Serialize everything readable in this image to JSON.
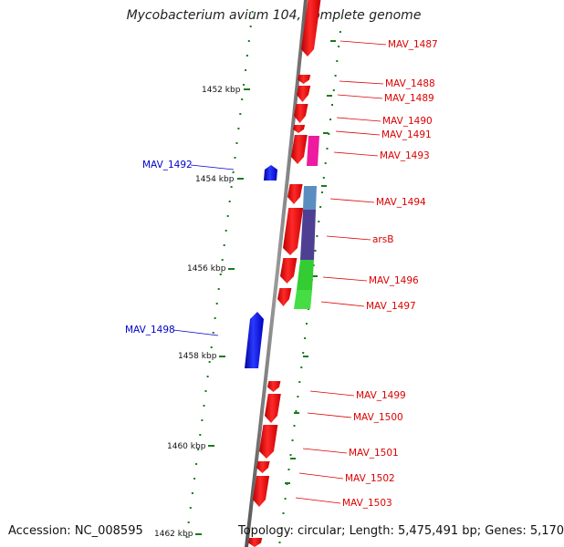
{
  "header": {
    "title": "Mycobacterium avium 104, complete genome"
  },
  "footer": {
    "accession": "Accession: NC_008595",
    "topology": "Topology: circular; Length: 5,475,491 bp; Genes: 5,170"
  },
  "colors": {
    "forward_gene": "#ff0000",
    "reverse_gene": "#0000ff",
    "feature_magenta": "#ee1aa0",
    "feature_steelblue": "#5a8ec0",
    "feature_purple": "#4f3f93",
    "feature_green": "#33cc33",
    "tick": "#1b7a1b",
    "backbone": "#777777",
    "forward_label": "#dd0000",
    "reverse_label": "#0000cc"
  },
  "scale_labels": [
    "1452 kbp",
    "1454 kbp",
    "1456 kbp",
    "1458 kbp",
    "1460 kbp",
    "1462 kbp"
  ],
  "forward_genes": [
    "MAV_1487",
    "MAV_1488",
    "MAV_1489",
    "MAV_1490",
    "MAV_1491",
    "MAV_1493",
    "MAV_1494",
    "arsB",
    "MAV_1496",
    "MAV_1497",
    "MAV_1499",
    "MAV_1500",
    "MAV_1501",
    "MAV_1502",
    "MAV_1503"
  ],
  "reverse_genes": [
    "MAV_1492",
    "MAV_1498"
  ]
}
